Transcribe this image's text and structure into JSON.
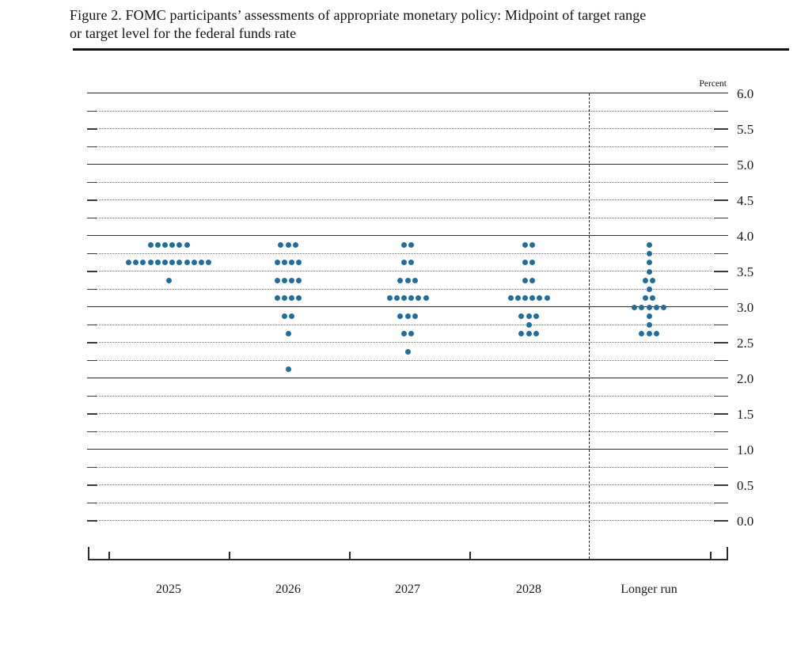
{
  "header": {
    "title_lines": [
      "Figure 2. FOMC participants’ assessments of appropriate monetary policy: Midpoint of target range",
      "or target level for the federal funds rate"
    ]
  },
  "colors": {
    "dot": "#206e9e",
    "solid_line": "#2b2b2b",
    "dotted_line": "#6e6e6e",
    "text": "#1a1a1a"
  },
  "chart_data": {
    "type": "scatter",
    "subtype": "fomc-dot-plot",
    "title": "Figure 2. FOMC participants’ assessments of appropriate monetary policy: Midpoint of target range or target level for the federal funds rate",
    "ylabel": "Percent",
    "unit_label": "Percent",
    "ylim": [
      0.0,
      6.0
    ],
    "y_gridline_step": 0.25,
    "y_label_step": 0.5,
    "solid_gridlines_at": [
      1.0,
      2.0,
      3.0,
      4.0,
      5.0,
      6.0
    ],
    "y_tick_labels": [
      "6.0",
      "5.5",
      "5.0",
      "4.5",
      "4.0",
      "3.5",
      "3.0",
      "2.5",
      "2.0",
      "1.5",
      "1.0",
      "0.5",
      "0.0"
    ],
    "grid": "dotted-quarters",
    "legend_position": "none",
    "separator_before_category": "Longer run",
    "categories": [
      "2025",
      "2026",
      "2027",
      "2028",
      "Longer run"
    ],
    "participants_per_column": 19,
    "distributions": [
      {
        "category": "2025",
        "dots": [
          {
            "rate": 3.875,
            "count": 6
          },
          {
            "rate": 3.625,
            "count": 12
          },
          {
            "rate": 3.375,
            "count": 1
          }
        ]
      },
      {
        "category": "2026",
        "dots": [
          {
            "rate": 3.875,
            "count": 3
          },
          {
            "rate": 3.625,
            "count": 4
          },
          {
            "rate": 3.375,
            "count": 4
          },
          {
            "rate": 3.125,
            "count": 4
          },
          {
            "rate": 2.875,
            "count": 2
          },
          {
            "rate": 2.625,
            "count": 1
          },
          {
            "rate": 2.125,
            "count": 1
          }
        ]
      },
      {
        "category": "2027",
        "dots": [
          {
            "rate": 3.875,
            "count": 2
          },
          {
            "rate": 3.625,
            "count": 2
          },
          {
            "rate": 3.375,
            "count": 3
          },
          {
            "rate": 3.125,
            "count": 6
          },
          {
            "rate": 2.875,
            "count": 3
          },
          {
            "rate": 2.625,
            "count": 2
          },
          {
            "rate": 2.375,
            "count": 1
          }
        ]
      },
      {
        "category": "2028",
        "dots": [
          {
            "rate": 3.875,
            "count": 2
          },
          {
            "rate": 3.625,
            "count": 2
          },
          {
            "rate": 3.375,
            "count": 2
          },
          {
            "rate": 3.125,
            "count": 6
          },
          {
            "rate": 2.875,
            "count": 3
          },
          {
            "rate": 2.75,
            "count": 1
          },
          {
            "rate": 2.625,
            "count": 3
          }
        ]
      },
      {
        "category": "Longer run",
        "dots": [
          {
            "rate": 3.875,
            "count": 1
          },
          {
            "rate": 3.75,
            "count": 1
          },
          {
            "rate": 3.625,
            "count": 1
          },
          {
            "rate": 3.5,
            "count": 1
          },
          {
            "rate": 3.375,
            "count": 2
          },
          {
            "rate": 3.25,
            "count": 1
          },
          {
            "rate": 3.125,
            "count": 2
          },
          {
            "rate": 3.0,
            "count": 5
          },
          {
            "rate": 2.875,
            "count": 1
          },
          {
            "rate": 2.75,
            "count": 1
          },
          {
            "rate": 2.625,
            "count": 3
          }
        ]
      }
    ]
  }
}
